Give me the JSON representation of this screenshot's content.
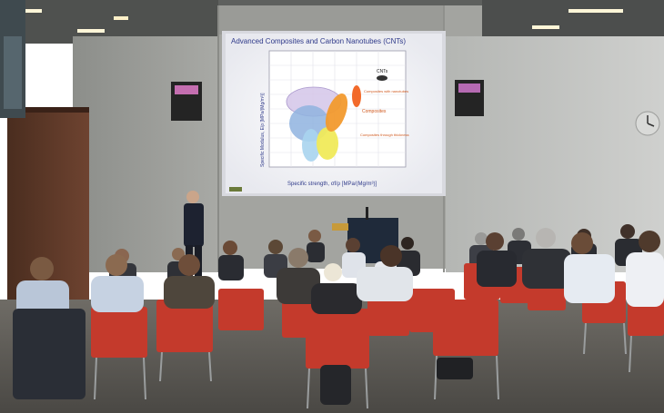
{
  "slide": {
    "title": "Advanced Composites and Carbon Nanotubes (CNTs)",
    "y_axis_label": "Specific Modulus, E/ρ [MPa/(Mg/m³)]",
    "x_axis_label": "Specific strength, σf/ρ [MPa/(Mg/m³)]",
    "labels": {
      "cnts": "CNTs",
      "composites_nanotubes": "Composites with nanotubes",
      "composites": "Composites",
      "composites_through_thickness": "Composites through thickness"
    }
  }
}
